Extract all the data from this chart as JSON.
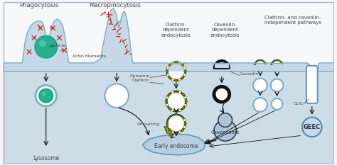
{
  "bg_top": "#f0f4f8",
  "bg_cell": "#ccdde8",
  "mem_fill": "#c8dcea",
  "mem_edge": "#7aaec8",
  "green_dark": "#1a9e80",
  "green_mid": "#26b090",
  "green_light": "#60d4b0",
  "black": "#111111",
  "dark_navy": "#223344",
  "label_color": "#444444",
  "red_actin": "#cc2200",
  "cl_green": "#336600",
  "cl_orange": "#cc5500",
  "early_fill": "#b8cfdf",
  "cav_fill": "#a8c0d8",
  "geec_fill": "#c8d8e8",
  "figsize": [
    4.74,
    2.33
  ],
  "dpi": 100,
  "labels": {
    "phagocytosis": "Phagocytosis",
    "macropinocytosis": "Macropinocytosis",
    "clathrin_dep": "Clathrin-\ndependent\nendocytosis",
    "caveolin_dep": "Caveolin-\ndependent\nendocytosis",
    "ind_pathways": "Clathrin- and caveolin-\nindependent pathways",
    "particle": "Particle",
    "actin": "Actin filaments",
    "dynamin": "Dynamin",
    "clathrin_lbl": "Clathrin",
    "uncoating": "Uncoating",
    "lysosome": "Lysosome",
    "early_endosome": "Early endosome",
    "caveolin": "Caveolin",
    "caveosome": "Caveosome",
    "clic": "CLIC",
    "geec": "GEEC"
  }
}
